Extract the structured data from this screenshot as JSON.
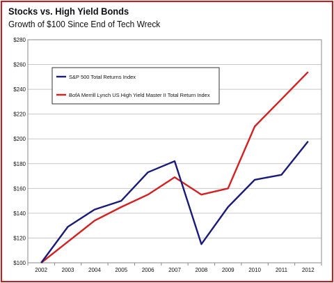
{
  "chart_data": {
    "type": "line",
    "title": "Stocks vs. High Yield Bonds",
    "subtitle": "Growth of $100 Since End of Tech Wreck",
    "xlabel": "",
    "ylabel": "",
    "x": [
      "2002",
      "2003",
      "2004",
      "2005",
      "2006",
      "2007",
      "2008",
      "2009",
      "2010",
      "2011",
      "2012"
    ],
    "ylim": [
      100,
      280
    ],
    "yticks": [
      100,
      120,
      140,
      160,
      180,
      200,
      220,
      240,
      260,
      280
    ],
    "ytick_labels": [
      "$100",
      "$120",
      "$140",
      "$160",
      "$180",
      "$200",
      "$220",
      "$240",
      "$260",
      "$280"
    ],
    "grid": true,
    "legend_position": "upper-left",
    "series": [
      {
        "name": "S&P 500 Total Returns Index",
        "color": "#1a1a7a",
        "values": [
          100,
          129,
          143,
          150,
          173,
          182,
          115,
          145,
          167,
          171,
          198
        ]
      },
      {
        "name": "BofA Merrill Lynch US High Yield Master II Total Return Index",
        "color": "#d42020",
        "values": [
          100,
          117,
          134,
          145,
          155,
          169,
          155,
          160,
          210,
          232,
          254
        ]
      }
    ]
  }
}
